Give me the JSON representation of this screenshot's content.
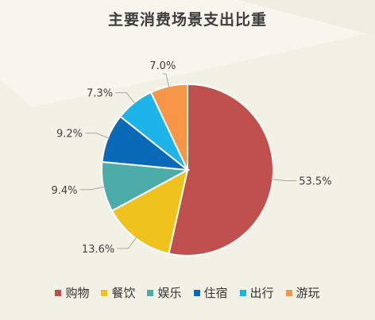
{
  "chart_data": {
    "type": "pie",
    "title": "主要消费场景支出比重",
    "categories": [
      "购物",
      "餐饮",
      "娱乐",
      "住宿",
      "出行",
      "游玩"
    ],
    "values": [
      53.5,
      13.6,
      9.4,
      9.2,
      7.3,
      7.0
    ],
    "labels": [
      "53.5%",
      "13.6%",
      "9.4%",
      "9.2%",
      "7.3%",
      "7.0%"
    ],
    "colors": [
      "#c0504d",
      "#f0c21e",
      "#4bacaa",
      "#0b6ab8",
      "#1eb4ea",
      "#f79646"
    ],
    "legend_position": "bottom"
  }
}
